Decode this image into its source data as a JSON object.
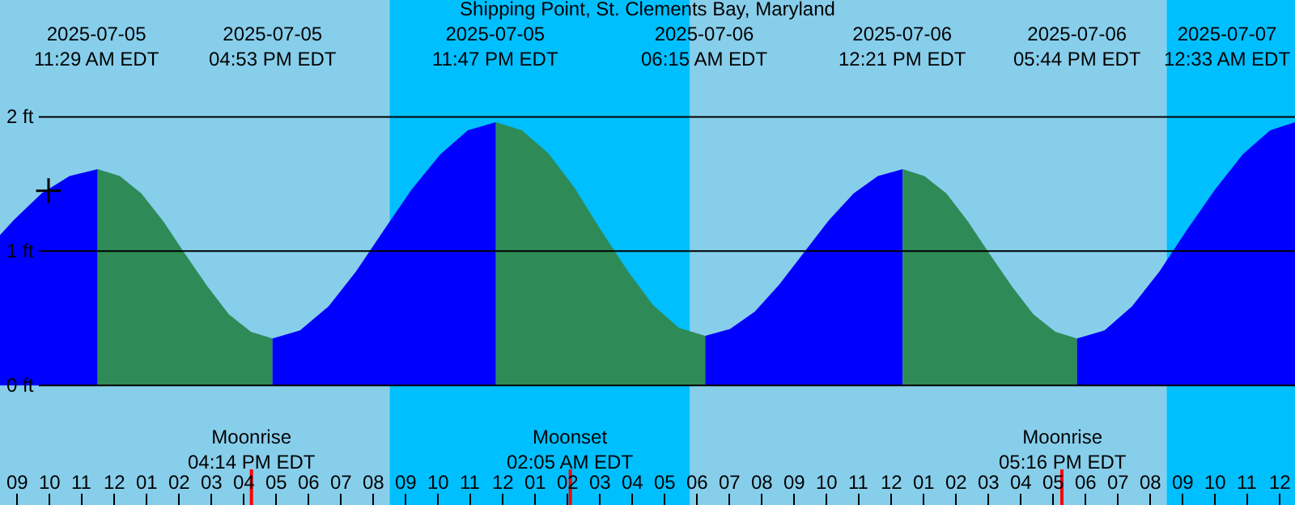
{
  "chart_data": {
    "type": "area",
    "title": "Shipping Point, St. Clements Bay, Maryland",
    "xlim": [
      "2025-07-05T08:28",
      "2025-07-07T00:28"
    ],
    "ylim": [
      -0.89,
      2.87
    ],
    "xticks": [
      {
        "value": "2025-07-05T09:00",
        "label": "09"
      },
      {
        "value": "2025-07-05T10:00",
        "label": "10"
      },
      {
        "value": "2025-07-05T11:00",
        "label": "11"
      },
      {
        "value": "2025-07-05T12:00",
        "label": "12"
      },
      {
        "value": "2025-07-05T13:00",
        "label": "01"
      },
      {
        "value": "2025-07-05T14:00",
        "label": "02"
      },
      {
        "value": "2025-07-05T15:00",
        "label": "03"
      },
      {
        "value": "2025-07-05T16:00",
        "label": "04"
      },
      {
        "value": "2025-07-05T17:00",
        "label": "05"
      },
      {
        "value": "2025-07-05T18:00",
        "label": "06"
      },
      {
        "value": "2025-07-05T19:00",
        "label": "07"
      },
      {
        "value": "2025-07-05T20:00",
        "label": "08"
      },
      {
        "value": "2025-07-05T21:00",
        "label": "09"
      },
      {
        "value": "2025-07-05T22:00",
        "label": "10"
      },
      {
        "value": "2025-07-05T23:00",
        "label": "11"
      },
      {
        "value": "2025-07-06T00:00",
        "label": "12"
      },
      {
        "value": "2025-07-06T01:00",
        "label": "01"
      },
      {
        "value": "2025-07-06T02:00",
        "label": "02"
      },
      {
        "value": "2025-07-06T03:00",
        "label": "03"
      },
      {
        "value": "2025-07-06T04:00",
        "label": "04"
      },
      {
        "value": "2025-07-06T05:00",
        "label": "05"
      },
      {
        "value": "2025-07-06T06:00",
        "label": "06"
      },
      {
        "value": "2025-07-06T07:00",
        "label": "07"
      },
      {
        "value": "2025-07-06T08:00",
        "label": "08"
      },
      {
        "value": "2025-07-06T09:00",
        "label": "09"
      },
      {
        "value": "2025-07-06T10:00",
        "label": "10"
      },
      {
        "value": "2025-07-06T11:00",
        "label": "11"
      },
      {
        "value": "2025-07-06T12:00",
        "label": "12"
      },
      {
        "value": "2025-07-06T13:00",
        "label": "01"
      },
      {
        "value": "2025-07-06T14:00",
        "label": "02"
      },
      {
        "value": "2025-07-06T15:00",
        "label": "03"
      },
      {
        "value": "2025-07-06T16:00",
        "label": "04"
      },
      {
        "value": "2025-07-06T17:00",
        "label": "05"
      },
      {
        "value": "2025-07-06T18:00",
        "label": "06"
      },
      {
        "value": "2025-07-06T19:00",
        "label": "07"
      },
      {
        "value": "2025-07-06T20:00",
        "label": "08"
      },
      {
        "value": "2025-07-06T21:00",
        "label": "09"
      },
      {
        "value": "2025-07-06T22:00",
        "label": "10"
      },
      {
        "value": "2025-07-06T23:00",
        "label": "11"
      },
      {
        "value": "2025-07-07T00:00",
        "label": "12"
      }
    ],
    "yticks": [
      {
        "value": 0,
        "label": "0 ft"
      },
      {
        "value": 1,
        "label": "1 ft"
      },
      {
        "value": 2,
        "label": "2 ft"
      }
    ],
    "grid": "y",
    "bands": [
      {
        "axis": "x",
        "from": "2025-07-05T08:28",
        "to": "2025-07-05T20:30",
        "label": null,
        "color": "#87ceeb"
      },
      {
        "axis": "x",
        "from": "2025-07-05T20:30",
        "to": "2025-07-06T05:47",
        "label": null,
        "color": "#00bfff"
      },
      {
        "axis": "x",
        "from": "2025-07-06T05:47",
        "to": "2025-07-06T20:30",
        "label": null,
        "color": "#87ceeb"
      },
      {
        "axis": "x",
        "from": "2025-07-06T20:30",
        "to": "2025-07-07T00:28",
        "label": null,
        "color": "#00bfff"
      }
    ],
    "ref_lines": [
      {
        "axis": "x",
        "value": "2025-07-05T16:14",
        "label": "Moonrise\n04:14 PM EDT",
        "color": "#ff0000"
      },
      {
        "axis": "x",
        "value": "2025-07-06T02:05",
        "label": "Moonset\n02:05 AM EDT",
        "color": "#ff0000"
      },
      {
        "axis": "x",
        "value": "2025-07-06T17:16",
        "label": "Moonrise\n05:16 PM EDT",
        "color": "#ff0000"
      }
    ],
    "series": [
      {
        "color": "#0000ff",
        "x": [
          "2025-07-05T08:28",
          "2025-07-05T08:53",
          "2025-07-05T09:45",
          "2025-07-05T10:37",
          "2025-07-05T11:29"
        ],
        "values": [
          1.12,
          1.23,
          1.43,
          1.56,
          1.61
        ]
      },
      {
        "color": "#2e8b57",
        "x": [
          "2025-07-05T11:29",
          "2025-07-05T12:10",
          "2025-07-05T12:50",
          "2025-07-05T13:31",
          "2025-07-05T14:11",
          "2025-07-05T14:52",
          "2025-07-05T15:32",
          "2025-07-05T16:13",
          "2025-07-05T16:53"
        ],
        "values": [
          1.61,
          1.56,
          1.43,
          1.22,
          0.98,
          0.74,
          0.53,
          0.4,
          0.35
        ]
      },
      {
        "color": "#0000ff",
        "x": [
          "2025-07-05T16:53",
          "2025-07-05T17:44",
          "2025-07-05T18:37",
          "2025-07-05T19:28",
          "2025-07-05T20:20",
          "2025-07-05T21:11",
          "2025-07-05T22:04",
          "2025-07-05T22:55",
          "2025-07-05T23:47"
        ],
        "values": [
          0.35,
          0.41,
          0.59,
          0.85,
          1.16,
          1.46,
          1.72,
          1.9,
          1.96
        ]
      },
      {
        "color": "#2e8b57",
        "x": [
          "2025-07-05T23:47",
          "2025-07-06T00:35",
          "2025-07-06T01:24",
          "2025-07-06T02:13",
          "2025-07-06T03:01",
          "2025-07-06T03:50",
          "2025-07-06T04:38",
          "2025-07-06T05:26",
          "2025-07-06T06:15"
        ],
        "values": [
          1.96,
          1.9,
          1.73,
          1.47,
          1.16,
          0.86,
          0.6,
          0.43,
          0.37
        ]
      },
      {
        "color": "#0000ff",
        "x": [
          "2025-07-06T06:15",
          "2025-07-06T07:01",
          "2025-07-06T07:47",
          "2025-07-06T08:32",
          "2025-07-06T09:18",
          "2025-07-06T10:04",
          "2025-07-06T10:50",
          "2025-07-06T11:35",
          "2025-07-06T12:21"
        ],
        "values": [
          0.37,
          0.42,
          0.55,
          0.75,
          0.99,
          1.23,
          1.43,
          1.56,
          1.61
        ]
      },
      {
        "color": "#2e8b57",
        "x": [
          "2025-07-06T12:21",
          "2025-07-06T13:01",
          "2025-07-06T13:42",
          "2025-07-06T14:22",
          "2025-07-06T15:02",
          "2025-07-06T15:43",
          "2025-07-06T16:23",
          "2025-07-06T17:04",
          "2025-07-06T17:44"
        ],
        "values": [
          1.61,
          1.56,
          1.43,
          1.22,
          0.98,
          0.74,
          0.53,
          0.4,
          0.35
        ]
      },
      {
        "color": "#0000ff",
        "x": [
          "2025-07-06T17:44",
          "2025-07-06T18:35",
          "2025-07-06T19:26",
          "2025-07-06T20:17",
          "2025-07-06T21:08",
          "2025-07-06T22:00",
          "2025-07-06T22:51",
          "2025-07-06T23:42",
          "2025-07-07T00:28"
        ],
        "values": [
          0.35,
          0.41,
          0.59,
          0.85,
          1.16,
          1.46,
          1.72,
          1.9,
          1.96
        ]
      },
      {
        "type": "scatter",
        "marker": "cross",
        "color": "#000000",
        "x": [
          "2025-07-05T09:58"
        ],
        "values": [
          1.45
        ]
      }
    ],
    "annotations": [
      "2025-07-05\n11:29 AM EDT",
      "2025-07-05\n04:53 PM EDT",
      "2025-07-05\n11:47 PM EDT",
      "2025-07-06\n06:15 AM EDT",
      "2025-07-06\n12:21 PM EDT",
      "2025-07-06\n05:44 PM EDT",
      "2025-07-07\n12:33 AM EDT"
    ]
  }
}
